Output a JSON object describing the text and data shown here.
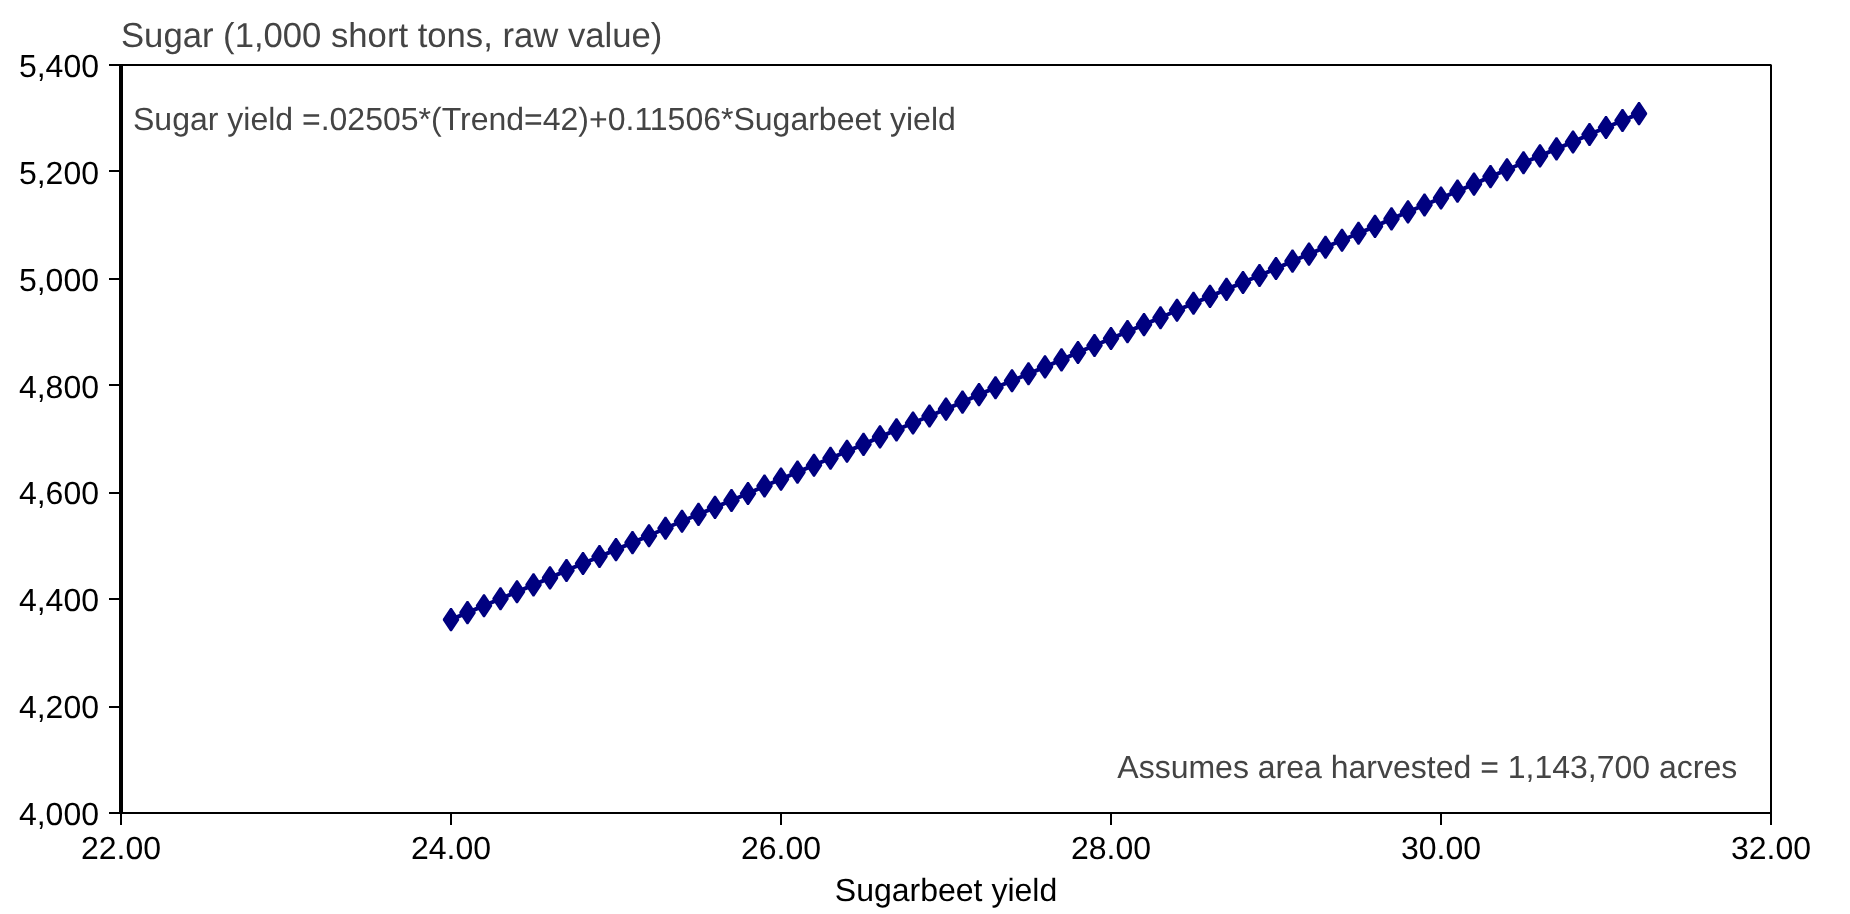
{
  "chart_data": {
    "type": "line",
    "title": "Sugar (1,000 short tons, raw value)",
    "xlabel": "Sugarbeet yield",
    "annotations": [
      "Sugar yield =.02505*(Trend=42)+0.11506*Sugarbeet yield",
      "Assumes area harvested  = 1,143,700  acres"
    ],
    "x": [
      24.0,
      24.1,
      24.2,
      24.3,
      24.4,
      24.5,
      24.6,
      24.7,
      24.8,
      24.9,
      25.0,
      25.1,
      25.2,
      25.3,
      25.4,
      25.5,
      25.6,
      25.7,
      25.8,
      25.9,
      26.0,
      26.1,
      26.2,
      26.3,
      26.4,
      26.5,
      26.6,
      26.7,
      26.8,
      26.9,
      27.0,
      27.1,
      27.2,
      27.3,
      27.4,
      27.5,
      27.6,
      27.7,
      27.8,
      27.9,
      28.0,
      28.1,
      28.2,
      28.3,
      28.4,
      28.5,
      28.6,
      28.7,
      28.8,
      28.9,
      29.0,
      29.1,
      29.2,
      29.3,
      29.4,
      29.5,
      29.6,
      29.7,
      29.8,
      29.9,
      30.0,
      30.1,
      30.2,
      30.3,
      30.4,
      30.5,
      30.6,
      30.7,
      30.8,
      30.9,
      31.0,
      31.1,
      31.2
    ],
    "series": [
      {
        "color": "#000080",
        "values": [
          4362,
          4375,
          4388,
          4401,
          4414,
          4427,
          4440,
          4454,
          4467,
          4480,
          4493,
          4506,
          4519,
          4533,
          4546,
          4559,
          4572,
          4585,
          4598,
          4612,
          4625,
          4638,
          4651,
          4664,
          4677,
          4690,
          4704,
          4717,
          4730,
          4743,
          4756,
          4769,
          4783,
          4796,
          4809,
          4822,
          4835,
          4848,
          4862,
          4875,
          4888,
          4901,
          4914,
          4927,
          4941,
          4954,
          4967,
          4980,
          4993,
          5006,
          5019,
          5033,
          5046,
          5059,
          5072,
          5085,
          5098,
          5112,
          5125,
          5138,
          5151,
          5164,
          5177,
          5191,
          5204,
          5217,
          5230,
          5243,
          5256,
          5270,
          5283,
          5296,
          5309
        ]
      }
    ],
    "xlim": [
      22,
      32
    ],
    "xticks": [
      {
        "value": 22,
        "label": "22.00"
      },
      {
        "value": 24,
        "label": "24.00"
      },
      {
        "value": 26,
        "label": "26.00"
      },
      {
        "value": 28,
        "label": "28.00"
      },
      {
        "value": 30,
        "label": "30.00"
      },
      {
        "value": 32,
        "label": "32.00"
      }
    ],
    "ylim": [
      4000,
      5400
    ],
    "yticks": [
      {
        "value": 4000,
        "label": "4,000"
      },
      {
        "value": 4200,
        "label": "4,200"
      },
      {
        "value": 4400,
        "label": "4,400"
      },
      {
        "value": 4600,
        "label": "4,600"
      },
      {
        "value": 4800,
        "label": "4,800"
      },
      {
        "value": 5000,
        "label": "5,000"
      },
      {
        "value": 5200,
        "label": "5,200"
      },
      {
        "value": 5400,
        "label": "5,400"
      }
    ],
    "grid": false,
    "marker": "diamond",
    "line_style": "solid"
  }
}
